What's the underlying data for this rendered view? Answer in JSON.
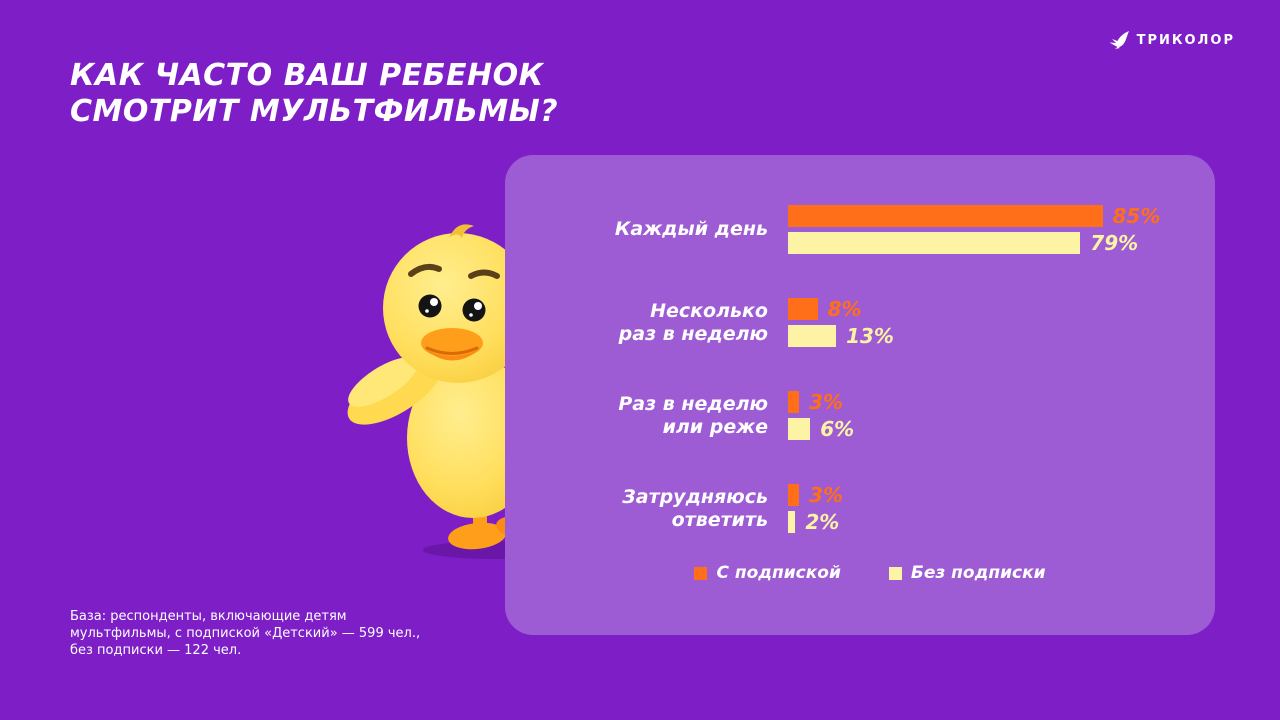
{
  "brand": {
    "name": "ТРИКОЛОР"
  },
  "title": {
    "line1": "КАК ЧАСТО ВАШ РЕБЕНОК",
    "line2": "СМОТРИТ МУЛЬТФИЛЬМЫ?"
  },
  "footnote": {
    "line1": "База: респонденты,  включающие детям",
    "line2": "мультфильмы,  с подпиской  «Детский»  — 599 чел.,",
    "line3": "без подписки  — 122 чел."
  },
  "colors": {
    "background": "#7D1EC6",
    "panel": "#9D5BD4",
    "orange": "#FF6E19",
    "yellow": "#FCF3A4"
  },
  "chart_data": {
    "type": "bar",
    "orientation": "horizontal",
    "title": "Как часто ваш ребенок смотрит мультфильмы?",
    "categories": [
      "Каждый день",
      "Несколько раз в неделю",
      "Раз в неделю или реже",
      "Затрудняюсь ответить"
    ],
    "categories_lines": [
      [
        "Каждый день",
        ""
      ],
      [
        "Несколько",
        "раз в неделю"
      ],
      [
        "Раз в неделю",
        "или реже"
      ],
      [
        "Затрудняюсь",
        "ответить"
      ]
    ],
    "series": [
      {
        "name": "С подпиской",
        "color": "#FF6E19",
        "values": [
          85,
          8,
          3,
          3
        ],
        "labels": [
          "85%",
          "8%",
          "3%",
          "3%"
        ]
      },
      {
        "name": "Без подписки",
        "color": "#FCF3A4",
        "values": [
          79,
          13,
          6,
          2
        ],
        "labels": [
          "79%",
          "13%",
          "6%",
          "2%"
        ]
      }
    ],
    "value_suffix": "%",
    "xlim": [
      0,
      100
    ],
    "legend_position": "bottom",
    "grid": false
  }
}
